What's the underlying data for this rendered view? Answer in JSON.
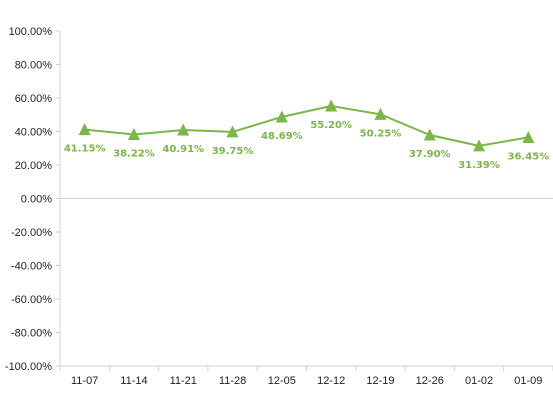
{
  "chart_data": {
    "type": "line",
    "categories": [
      "11-07",
      "11-14",
      "11-21",
      "11-28",
      "12-05",
      "12-12",
      "12-19",
      "12-26",
      "01-02",
      "01-09"
    ],
    "series": [
      {
        "values": [
          41.15,
          38.22,
          40.91,
          39.75,
          48.69,
          55.2,
          50.25,
          37.9,
          31.39,
          36.45
        ],
        "data_labels": [
          "41.15%",
          "38.22%",
          "40.91%",
          "39.75%",
          "48.69%",
          "55.20%",
          "50.25%",
          "37.90%",
          "31.39%",
          "36.45%"
        ],
        "marker": "triangle",
        "color": "#7ab648"
      }
    ],
    "y_ticks": [
      100,
      80,
      60,
      40,
      20,
      0,
      -20,
      -40,
      -60,
      -80,
      -100
    ],
    "y_tick_labels": [
      "100.00%",
      "80.00%",
      "60.00%",
      "40.00%",
      "20.00%",
      "0.00%",
      "-20.00%",
      "-40.00%",
      "-60.00%",
      "-80.00%",
      "-100.00%"
    ],
    "ylim": [
      -100,
      100
    ],
    "grid": false,
    "axis_color": "#d0d0d0",
    "label_color": "#7ab648"
  }
}
